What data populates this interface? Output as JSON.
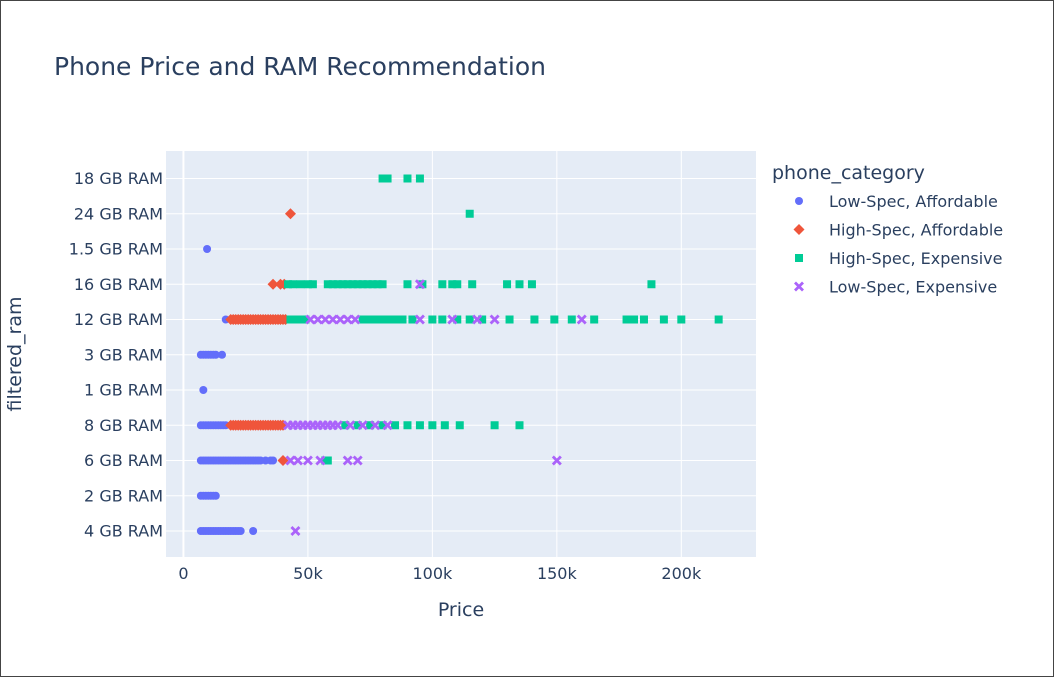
{
  "chart_data": {
    "type": "scatter",
    "title": "Phone Price and RAM Recommendation",
    "xlabel": "Price",
    "ylabel": "filtered_ram",
    "xlim": [
      -7000,
      230000
    ],
    "x_ticks": [
      {
        "value": 0,
        "label": "0"
      },
      {
        "value": 50000,
        "label": "50k"
      },
      {
        "value": 100000,
        "label": "100k"
      },
      {
        "value": 150000,
        "label": "150k"
      },
      {
        "value": 200000,
        "label": "200k"
      }
    ],
    "categories": [
      "4 GB RAM",
      "2 GB RAM",
      "6 GB RAM",
      "8 GB RAM",
      "1 GB RAM",
      "3 GB RAM",
      "12 GB RAM",
      "16 GB RAM",
      "1.5 GB RAM",
      "24 GB RAM",
      "18 GB RAM"
    ],
    "grid": true,
    "legend": {
      "title": "phone_category",
      "placement": "right"
    },
    "series": [
      {
        "name": "Low-Spec, Affordable",
        "color": "#636efa",
        "symbol": "circle",
        "points": [
          {
            "x": 7000,
            "y": "4 GB RAM"
          },
          {
            "x": 8000,
            "y": "4 GB RAM"
          },
          {
            "x": 9000,
            "y": "4 GB RAM"
          },
          {
            "x": 10000,
            "y": "4 GB RAM"
          },
          {
            "x": 11000,
            "y": "4 GB RAM"
          },
          {
            "x": 12000,
            "y": "4 GB RAM"
          },
          {
            "x": 13000,
            "y": "4 GB RAM"
          },
          {
            "x": 14000,
            "y": "4 GB RAM"
          },
          {
            "x": 15000,
            "y": "4 GB RAM"
          },
          {
            "x": 16000,
            "y": "4 GB RAM"
          },
          {
            "x": 17000,
            "y": "4 GB RAM"
          },
          {
            "x": 18000,
            "y": "4 GB RAM"
          },
          {
            "x": 19000,
            "y": "4 GB RAM"
          },
          {
            "x": 20000,
            "y": "4 GB RAM"
          },
          {
            "x": 21000,
            "y": "4 GB RAM"
          },
          {
            "x": 22000,
            "y": "4 GB RAM"
          },
          {
            "x": 23000,
            "y": "4 GB RAM"
          },
          {
            "x": 28000,
            "y": "4 GB RAM"
          },
          {
            "x": 7000,
            "y": "2 GB RAM"
          },
          {
            "x": 8000,
            "y": "2 GB RAM"
          },
          {
            "x": 9000,
            "y": "2 GB RAM"
          },
          {
            "x": 10000,
            "y": "2 GB RAM"
          },
          {
            "x": 11000,
            "y": "2 GB RAM"
          },
          {
            "x": 12000,
            "y": "2 GB RAM"
          },
          {
            "x": 13000,
            "y": "2 GB RAM"
          },
          {
            "x": 7000,
            "y": "6 GB RAM"
          },
          {
            "x": 8000,
            "y": "6 GB RAM"
          },
          {
            "x": 9000,
            "y": "6 GB RAM"
          },
          {
            "x": 10000,
            "y": "6 GB RAM"
          },
          {
            "x": 11000,
            "y": "6 GB RAM"
          },
          {
            "x": 12000,
            "y": "6 GB RAM"
          },
          {
            "x": 13000,
            "y": "6 GB RAM"
          },
          {
            "x": 14000,
            "y": "6 GB RAM"
          },
          {
            "x": 15000,
            "y": "6 GB RAM"
          },
          {
            "x": 16000,
            "y": "6 GB RAM"
          },
          {
            "x": 17000,
            "y": "6 GB RAM"
          },
          {
            "x": 18000,
            "y": "6 GB RAM"
          },
          {
            "x": 19000,
            "y": "6 GB RAM"
          },
          {
            "x": 20000,
            "y": "6 GB RAM"
          },
          {
            "x": 21000,
            "y": "6 GB RAM"
          },
          {
            "x": 22000,
            "y": "6 GB RAM"
          },
          {
            "x": 23000,
            "y": "6 GB RAM"
          },
          {
            "x": 24000,
            "y": "6 GB RAM"
          },
          {
            "x": 25000,
            "y": "6 GB RAM"
          },
          {
            "x": 26000,
            "y": "6 GB RAM"
          },
          {
            "x": 27000,
            "y": "6 GB RAM"
          },
          {
            "x": 28000,
            "y": "6 GB RAM"
          },
          {
            "x": 29000,
            "y": "6 GB RAM"
          },
          {
            "x": 30000,
            "y": "6 GB RAM"
          },
          {
            "x": 31000,
            "y": "6 GB RAM"
          },
          {
            "x": 33000,
            "y": "6 GB RAM"
          },
          {
            "x": 35000,
            "y": "6 GB RAM"
          },
          {
            "x": 36000,
            "y": "6 GB RAM"
          },
          {
            "x": 7000,
            "y": "8 GB RAM"
          },
          {
            "x": 8000,
            "y": "8 GB RAM"
          },
          {
            "x": 9000,
            "y": "8 GB RAM"
          },
          {
            "x": 10000,
            "y": "8 GB RAM"
          },
          {
            "x": 11000,
            "y": "8 GB RAM"
          },
          {
            "x": 12000,
            "y": "8 GB RAM"
          },
          {
            "x": 13000,
            "y": "8 GB RAM"
          },
          {
            "x": 14000,
            "y": "8 GB RAM"
          },
          {
            "x": 15000,
            "y": "8 GB RAM"
          },
          {
            "x": 16000,
            "y": "8 GB RAM"
          },
          {
            "x": 17000,
            "y": "8 GB RAM"
          },
          {
            "x": 8000,
            "y": "1 GB RAM"
          },
          {
            "x": 7000,
            "y": "3 GB RAM"
          },
          {
            "x": 8000,
            "y": "3 GB RAM"
          },
          {
            "x": 9000,
            "y": "3 GB RAM"
          },
          {
            "x": 10000,
            "y": "3 GB RAM"
          },
          {
            "x": 11000,
            "y": "3 GB RAM"
          },
          {
            "x": 12000,
            "y": "3 GB RAM"
          },
          {
            "x": 13000,
            "y": "3 GB RAM"
          },
          {
            "x": 15500,
            "y": "3 GB RAM"
          },
          {
            "x": 17000,
            "y": "12 GB RAM"
          },
          {
            "x": 9500,
            "y": "1.5 GB RAM"
          }
        ]
      },
      {
        "name": "High-Spec, Affordable",
        "color": "#ef553b",
        "symbol": "diamond",
        "points": [
          {
            "x": 19000,
            "y": "8 GB RAM"
          },
          {
            "x": 20000,
            "y": "8 GB RAM"
          },
          {
            "x": 21000,
            "y": "8 GB RAM"
          },
          {
            "x": 22000,
            "y": "8 GB RAM"
          },
          {
            "x": 23000,
            "y": "8 GB RAM"
          },
          {
            "x": 24000,
            "y": "8 GB RAM"
          },
          {
            "x": 25000,
            "y": "8 GB RAM"
          },
          {
            "x": 26000,
            "y": "8 GB RAM"
          },
          {
            "x": 27000,
            "y": "8 GB RAM"
          },
          {
            "x": 28000,
            "y": "8 GB RAM"
          },
          {
            "x": 29000,
            "y": "8 GB RAM"
          },
          {
            "x": 30000,
            "y": "8 GB RAM"
          },
          {
            "x": 31000,
            "y": "8 GB RAM"
          },
          {
            "x": 32000,
            "y": "8 GB RAM"
          },
          {
            "x": 33000,
            "y": "8 GB RAM"
          },
          {
            "x": 34000,
            "y": "8 GB RAM"
          },
          {
            "x": 35000,
            "y": "8 GB RAM"
          },
          {
            "x": 36000,
            "y": "8 GB RAM"
          },
          {
            "x": 37000,
            "y": "8 GB RAM"
          },
          {
            "x": 38000,
            "y": "8 GB RAM"
          },
          {
            "x": 39000,
            "y": "8 GB RAM"
          },
          {
            "x": 40000,
            "y": "8 GB RAM"
          },
          {
            "x": 19000,
            "y": "12 GB RAM"
          },
          {
            "x": 20000,
            "y": "12 GB RAM"
          },
          {
            "x": 21000,
            "y": "12 GB RAM"
          },
          {
            "x": 22000,
            "y": "12 GB RAM"
          },
          {
            "x": 23000,
            "y": "12 GB RAM"
          },
          {
            "x": 24000,
            "y": "12 GB RAM"
          },
          {
            "x": 25000,
            "y": "12 GB RAM"
          },
          {
            "x": 26000,
            "y": "12 GB RAM"
          },
          {
            "x": 27000,
            "y": "12 GB RAM"
          },
          {
            "x": 28000,
            "y": "12 GB RAM"
          },
          {
            "x": 29000,
            "y": "12 GB RAM"
          },
          {
            "x": 30000,
            "y": "12 GB RAM"
          },
          {
            "x": 31000,
            "y": "12 GB RAM"
          },
          {
            "x": 32000,
            "y": "12 GB RAM"
          },
          {
            "x": 33000,
            "y": "12 GB RAM"
          },
          {
            "x": 34000,
            "y": "12 GB RAM"
          },
          {
            "x": 35000,
            "y": "12 GB RAM"
          },
          {
            "x": 36000,
            "y": "12 GB RAM"
          },
          {
            "x": 37000,
            "y": "12 GB RAM"
          },
          {
            "x": 38000,
            "y": "12 GB RAM"
          },
          {
            "x": 39000,
            "y": "12 GB RAM"
          },
          {
            "x": 40000,
            "y": "12 GB RAM"
          },
          {
            "x": 41000,
            "y": "12 GB RAM"
          },
          {
            "x": 36000,
            "y": "16 GB RAM"
          },
          {
            "x": 39000,
            "y": "16 GB RAM"
          },
          {
            "x": 40500,
            "y": "16 GB RAM"
          },
          {
            "x": 40000,
            "y": "6 GB RAM"
          },
          {
            "x": 43000,
            "y": "24 GB RAM"
          }
        ]
      },
      {
        "name": "High-Spec, Expensive",
        "color": "#00cc96",
        "symbol": "square",
        "points": [
          {
            "x": 80000,
            "y": "18 GB RAM"
          },
          {
            "x": 82000,
            "y": "18 GB RAM"
          },
          {
            "x": 90000,
            "y": "18 GB RAM"
          },
          {
            "x": 95000,
            "y": "18 GB RAM"
          },
          {
            "x": 115000,
            "y": "24 GB RAM"
          },
          {
            "x": 42000,
            "y": "16 GB RAM"
          },
          {
            "x": 44000,
            "y": "16 GB RAM"
          },
          {
            "x": 47000,
            "y": "16 GB RAM"
          },
          {
            "x": 50000,
            "y": "16 GB RAM"
          },
          {
            "x": 52000,
            "y": "16 GB RAM"
          },
          {
            "x": 58000,
            "y": "16 GB RAM"
          },
          {
            "x": 60000,
            "y": "16 GB RAM"
          },
          {
            "x": 62000,
            "y": "16 GB RAM"
          },
          {
            "x": 64000,
            "y": "16 GB RAM"
          },
          {
            "x": 66000,
            "y": "16 GB RAM"
          },
          {
            "x": 68000,
            "y": "16 GB RAM"
          },
          {
            "x": 70000,
            "y": "16 GB RAM"
          },
          {
            "x": 72000,
            "y": "16 GB RAM"
          },
          {
            "x": 74000,
            "y": "16 GB RAM"
          },
          {
            "x": 76000,
            "y": "16 GB RAM"
          },
          {
            "x": 78000,
            "y": "16 GB RAM"
          },
          {
            "x": 80000,
            "y": "16 GB RAM"
          },
          {
            "x": 90000,
            "y": "16 GB RAM"
          },
          {
            "x": 96000,
            "y": "16 GB RAM"
          },
          {
            "x": 104000,
            "y": "16 GB RAM"
          },
          {
            "x": 108000,
            "y": "16 GB RAM"
          },
          {
            "x": 110000,
            "y": "16 GB RAM"
          },
          {
            "x": 116000,
            "y": "16 GB RAM"
          },
          {
            "x": 130000,
            "y": "16 GB RAM"
          },
          {
            "x": 135000,
            "y": "16 GB RAM"
          },
          {
            "x": 140000,
            "y": "16 GB RAM"
          },
          {
            "x": 188000,
            "y": "16 GB RAM"
          },
          {
            "x": 43000,
            "y": "12 GB RAM"
          },
          {
            "x": 46000,
            "y": "12 GB RAM"
          },
          {
            "x": 49000,
            "y": "12 GB RAM"
          },
          {
            "x": 72000,
            "y": "12 GB RAM"
          },
          {
            "x": 74000,
            "y": "12 GB RAM"
          },
          {
            "x": 76000,
            "y": "12 GB RAM"
          },
          {
            "x": 78000,
            "y": "12 GB RAM"
          },
          {
            "x": 80000,
            "y": "12 GB RAM"
          },
          {
            "x": 82000,
            "y": "12 GB RAM"
          },
          {
            "x": 84000,
            "y": "12 GB RAM"
          },
          {
            "x": 86000,
            "y": "12 GB RAM"
          },
          {
            "x": 88000,
            "y": "12 GB RAM"
          },
          {
            "x": 92000,
            "y": "12 GB RAM"
          },
          {
            "x": 100000,
            "y": "12 GB RAM"
          },
          {
            "x": 104000,
            "y": "12 GB RAM"
          },
          {
            "x": 110000,
            "y": "12 GB RAM"
          },
          {
            "x": 115000,
            "y": "12 GB RAM"
          },
          {
            "x": 120000,
            "y": "12 GB RAM"
          },
          {
            "x": 131000,
            "y": "12 GB RAM"
          },
          {
            "x": 141000,
            "y": "12 GB RAM"
          },
          {
            "x": 149000,
            "y": "12 GB RAM"
          },
          {
            "x": 156000,
            "y": "12 GB RAM"
          },
          {
            "x": 165000,
            "y": "12 GB RAM"
          },
          {
            "x": 178000,
            "y": "12 GB RAM"
          },
          {
            "x": 181000,
            "y": "12 GB RAM"
          },
          {
            "x": 185000,
            "y": "12 GB RAM"
          },
          {
            "x": 193000,
            "y": "12 GB RAM"
          },
          {
            "x": 200000,
            "y": "12 GB RAM"
          },
          {
            "x": 215000,
            "y": "12 GB RAM"
          },
          {
            "x": 65000,
            "y": "8 GB RAM"
          },
          {
            "x": 70000,
            "y": "8 GB RAM"
          },
          {
            "x": 75000,
            "y": "8 GB RAM"
          },
          {
            "x": 80000,
            "y": "8 GB RAM"
          },
          {
            "x": 85000,
            "y": "8 GB RAM"
          },
          {
            "x": 90000,
            "y": "8 GB RAM"
          },
          {
            "x": 95000,
            "y": "8 GB RAM"
          },
          {
            "x": 100000,
            "y": "8 GB RAM"
          },
          {
            "x": 105000,
            "y": "8 GB RAM"
          },
          {
            "x": 111000,
            "y": "8 GB RAM"
          },
          {
            "x": 125000,
            "y": "8 GB RAM"
          },
          {
            "x": 135000,
            "y": "8 GB RAM"
          },
          {
            "x": 57000,
            "y": "6 GB RAM"
          },
          {
            "x": 58000,
            "y": "6 GB RAM"
          }
        ]
      },
      {
        "name": "Low-Spec, Expensive",
        "color": "#ab63fa",
        "symbol": "x",
        "points": [
          {
            "x": 45000,
            "y": "4 GB RAM"
          },
          {
            "x": 43000,
            "y": "6 GB RAM"
          },
          {
            "x": 46000,
            "y": "6 GB RAM"
          },
          {
            "x": 50000,
            "y": "6 GB RAM"
          },
          {
            "x": 55000,
            "y": "6 GB RAM"
          },
          {
            "x": 66000,
            "y": "6 GB RAM"
          },
          {
            "x": 70000,
            "y": "6 GB RAM"
          },
          {
            "x": 150000,
            "y": "6 GB RAM"
          },
          {
            "x": 42000,
            "y": "8 GB RAM"
          },
          {
            "x": 44000,
            "y": "8 GB RAM"
          },
          {
            "x": 46000,
            "y": "8 GB RAM"
          },
          {
            "x": 48000,
            "y": "8 GB RAM"
          },
          {
            "x": 50000,
            "y": "8 GB RAM"
          },
          {
            "x": 52000,
            "y": "8 GB RAM"
          },
          {
            "x": 54000,
            "y": "8 GB RAM"
          },
          {
            "x": 56000,
            "y": "8 GB RAM"
          },
          {
            "x": 58000,
            "y": "8 GB RAM"
          },
          {
            "x": 60000,
            "y": "8 GB RAM"
          },
          {
            "x": 62000,
            "y": "8 GB RAM"
          },
          {
            "x": 67000,
            "y": "8 GB RAM"
          },
          {
            "x": 72000,
            "y": "8 GB RAM"
          },
          {
            "x": 77000,
            "y": "8 GB RAM"
          },
          {
            "x": 82000,
            "y": "8 GB RAM"
          },
          {
            "x": 51000,
            "y": "12 GB RAM"
          },
          {
            "x": 54000,
            "y": "12 GB RAM"
          },
          {
            "x": 57000,
            "y": "12 GB RAM"
          },
          {
            "x": 60000,
            "y": "12 GB RAM"
          },
          {
            "x": 63000,
            "y": "12 GB RAM"
          },
          {
            "x": 66000,
            "y": "12 GB RAM"
          },
          {
            "x": 69000,
            "y": "12 GB RAM"
          },
          {
            "x": 95000,
            "y": "12 GB RAM"
          },
          {
            "x": 108000,
            "y": "12 GB RAM"
          },
          {
            "x": 118000,
            "y": "12 GB RAM"
          },
          {
            "x": 125000,
            "y": "12 GB RAM"
          },
          {
            "x": 160000,
            "y": "12 GB RAM"
          },
          {
            "x": 95000,
            "y": "16 GB RAM"
          }
        ]
      }
    ]
  }
}
